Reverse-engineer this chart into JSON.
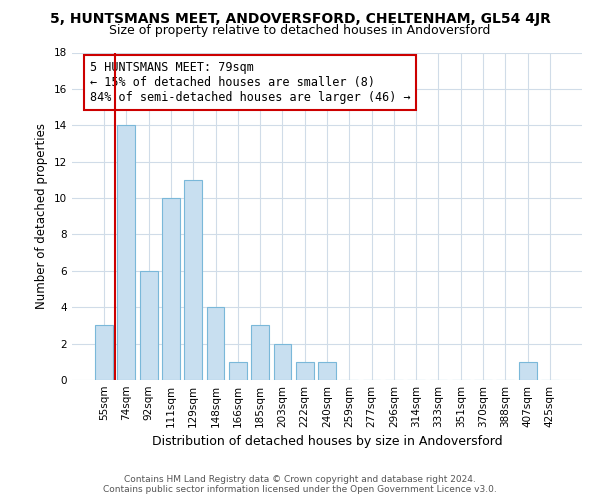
{
  "title_line1": "5, HUNTSMANS MEET, ANDOVERSFORD, CHELTENHAM, GL54 4JR",
  "title_line2": "Size of property relative to detached houses in Andoversford",
  "xlabel": "Distribution of detached houses by size in Andoversford",
  "ylabel": "Number of detached properties",
  "bar_labels": [
    "55sqm",
    "74sqm",
    "92sqm",
    "111sqm",
    "129sqm",
    "148sqm",
    "166sqm",
    "185sqm",
    "203sqm",
    "222sqm",
    "240sqm",
    "259sqm",
    "277sqm",
    "296sqm",
    "314sqm",
    "333sqm",
    "351sqm",
    "370sqm",
    "388sqm",
    "407sqm",
    "425sqm"
  ],
  "bar_values": [
    3,
    14,
    6,
    10,
    11,
    4,
    1,
    3,
    2,
    1,
    1,
    0,
    0,
    0,
    0,
    0,
    0,
    0,
    0,
    1,
    0
  ],
  "bar_color": "#c8dff0",
  "bar_edge_color": "#7ab8d9",
  "grid_color": "#d0dce8",
  "vline_color": "#cc0000",
  "annotation_title": "5 HUNTSMANS MEET: 79sqm",
  "annotation_line2": "← 15% of detached houses are smaller (8)",
  "annotation_line3": "84% of semi-detached houses are larger (46) →",
  "annotation_box_edge": "#cc0000",
  "ylim": [
    0,
    18
  ],
  "yticks": [
    0,
    2,
    4,
    6,
    8,
    10,
    12,
    14,
    16,
    18
  ],
  "footer_line1": "Contains HM Land Registry data © Crown copyright and database right 2024.",
  "footer_line2": "Contains public sector information licensed under the Open Government Licence v3.0.",
  "bg_color": "#ffffff",
  "title1_fontsize": 10,
  "title2_fontsize": 9,
  "ylabel_fontsize": 8.5,
  "xlabel_fontsize": 9,
  "tick_fontsize": 7.5,
  "annot_fontsize": 8.5,
  "footer_fontsize": 6.5
}
